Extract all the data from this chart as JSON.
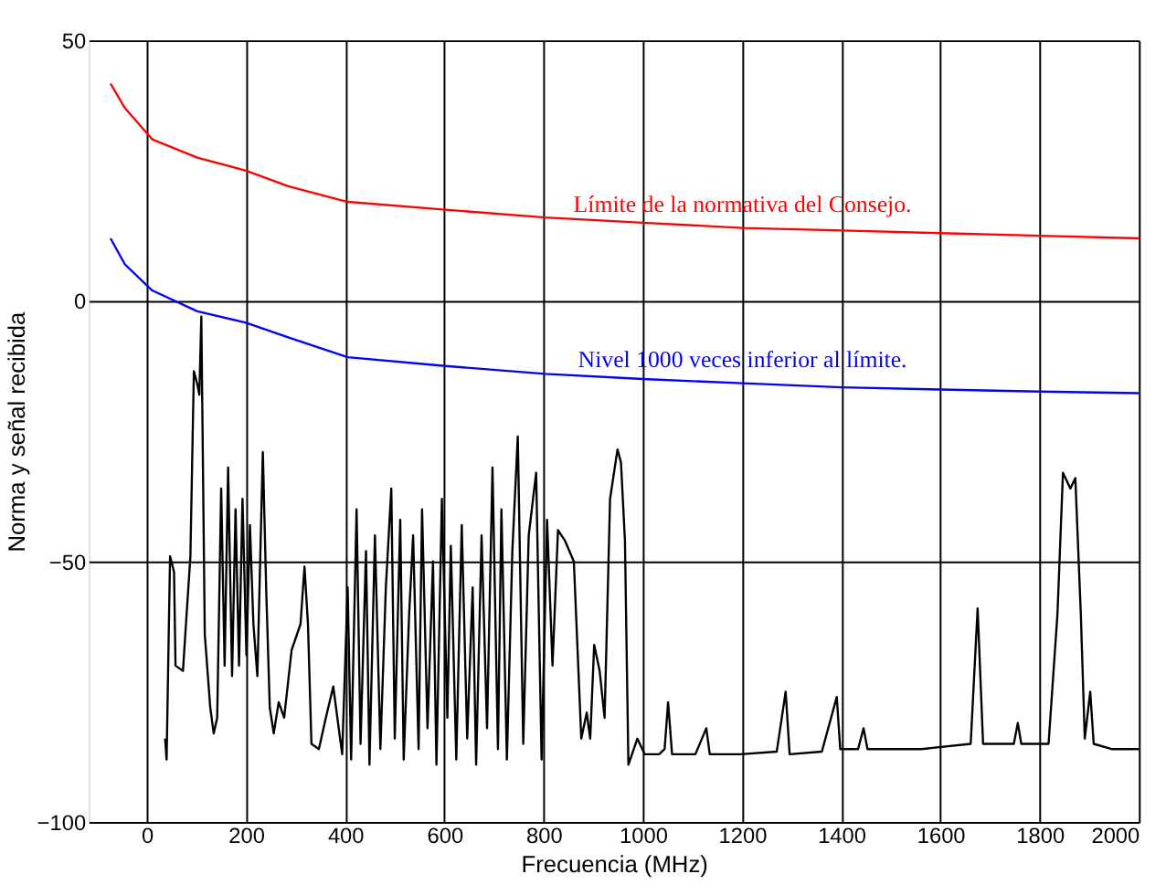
{
  "chart_data": {
    "type": "line",
    "xlabel": "Frecuencia (MHz)",
    "ylabel": "Norma y señal recibida",
    "xlim": [
      -117,
      2000
    ],
    "xticks": [
      0,
      200,
      400,
      600,
      800,
      1000,
      1200,
      1400,
      1600,
      1800,
      2000
    ],
    "ylim": [
      -100,
      50
    ],
    "yticks": [
      -100,
      -50,
      0,
      50
    ],
    "grid": true,
    "legend": false,
    "marker": "none",
    "line_style": "solid",
    "series": [
      {
        "name": "Límite de la normativa del Consejo.",
        "color": "#ff0000",
        "x": [
          -73,
          -44,
          11,
          102,
          200,
          285,
          405,
          602,
          803,
          1000,
          1201,
          1402,
          1599,
          1800,
          2000
        ],
        "values": [
          41.7,
          37,
          31,
          27.5,
          25,
          22,
          19,
          17.5,
          16,
          15,
          14,
          13.5,
          13,
          12.5,
          12
        ]
      },
      {
        "name": "Nivel 1000 veces inferior al límite.",
        "color": "#0000ff",
        "x": [
          -73,
          -44,
          11,
          102,
          200,
          285,
          405,
          602,
          803,
          1000,
          1201,
          1402,
          1599,
          1800,
          2000
        ],
        "values": [
          12,
          7,
          2,
          -2,
          -4.2,
          -7,
          -10.8,
          -12.5,
          -14,
          -15,
          -15.8,
          -16.6,
          -17,
          -17.4,
          -17.7
        ]
      },
      {
        "color": "#000000",
        "x": [
          37,
          40,
          47,
          55,
          58,
          73,
          77,
          88,
          95,
          102,
          106,
          110,
          117,
          128,
          135,
          142,
          150,
          157,
          164,
          172,
          179,
          186,
          193,
          201,
          208,
          215,
          223,
          234,
          241,
          248,
          256,
          266,
          277,
          292,
          310,
          318,
          325,
          332,
          347,
          361,
          376,
          387,
          394,
          405,
          412,
          423,
          431,
          442,
          449,
          460,
          471,
          482,
          493,
          500,
          511,
          518,
          529,
          537,
          548,
          555,
          566,
          577,
          584,
          595,
          606,
          613,
          624,
          635,
          646,
          657,
          664,
          675,
          686,
          697,
          708,
          715,
          726,
          737,
          748,
          759,
          770,
          785,
          796,
          807,
          818,
          829,
          843,
          861,
          876,
          887,
          894,
          902,
          913,
          923,
          934,
          949,
          956,
          964,
          971,
          989,
          1004,
          1033,
          1044,
          1051,
          1059,
          1106,
          1128,
          1135,
          1197,
          1270,
          1288,
          1296,
          1361,
          1391,
          1398,
          1434,
          1445,
          1453,
          1562,
          1661,
          1675,
          1686,
          1748,
          1756,
          1763,
          1818,
          1836,
          1847,
          1862,
          1872,
          1883,
          1891,
          1902,
          1909,
          1945,
          2000
        ],
        "values": [
          -84,
          -88,
          -49,
          -52,
          -70,
          -71,
          -65,
          -49,
          -13.5,
          -16,
          -18,
          -3,
          -64,
          -78,
          -83,
          -80,
          -36,
          -70,
          -32,
          -72,
          -40,
          -70,
          -38,
          -68,
          -43,
          -62,
          -72,
          -29,
          -56,
          -78,
          -83,
          -77,
          -80,
          -67,
          -62,
          -51,
          -62,
          -85,
          -86,
          -80,
          -74,
          -82,
          -87,
          -55,
          -88,
          -40,
          -85,
          -48,
          -89,
          -45,
          -86,
          -55,
          -36,
          -84,
          -42,
          -88,
          -60,
          -45,
          -86,
          -40,
          -82,
          -50,
          -89,
          -38,
          -80,
          -47,
          -88,
          -43,
          -84,
          -55,
          -89,
          -45,
          -82,
          -32,
          -86,
          -40,
          -88,
          -48,
          -26,
          -85,
          -45,
          -33,
          -88,
          -42,
          -70,
          -44,
          -46,
          -50,
          -84,
          -79,
          -84,
          -66,
          -71,
          -80,
          -38,
          -28.5,
          -31,
          -46,
          -89,
          -84,
          -87,
          -87,
          -86,
          -77,
          -87,
          -87,
          -82,
          -87,
          -87,
          -86.5,
          -75,
          -87,
          -86.5,
          -76,
          -86,
          -86,
          -82,
          -86,
          -86,
          -85,
          -59,
          -85,
          -85,
          -81,
          -85,
          -85,
          -60,
          -33,
          -36,
          -34,
          -60,
          -84,
          -75,
          -85,
          -86,
          -86
        ]
      }
    ]
  }
}
